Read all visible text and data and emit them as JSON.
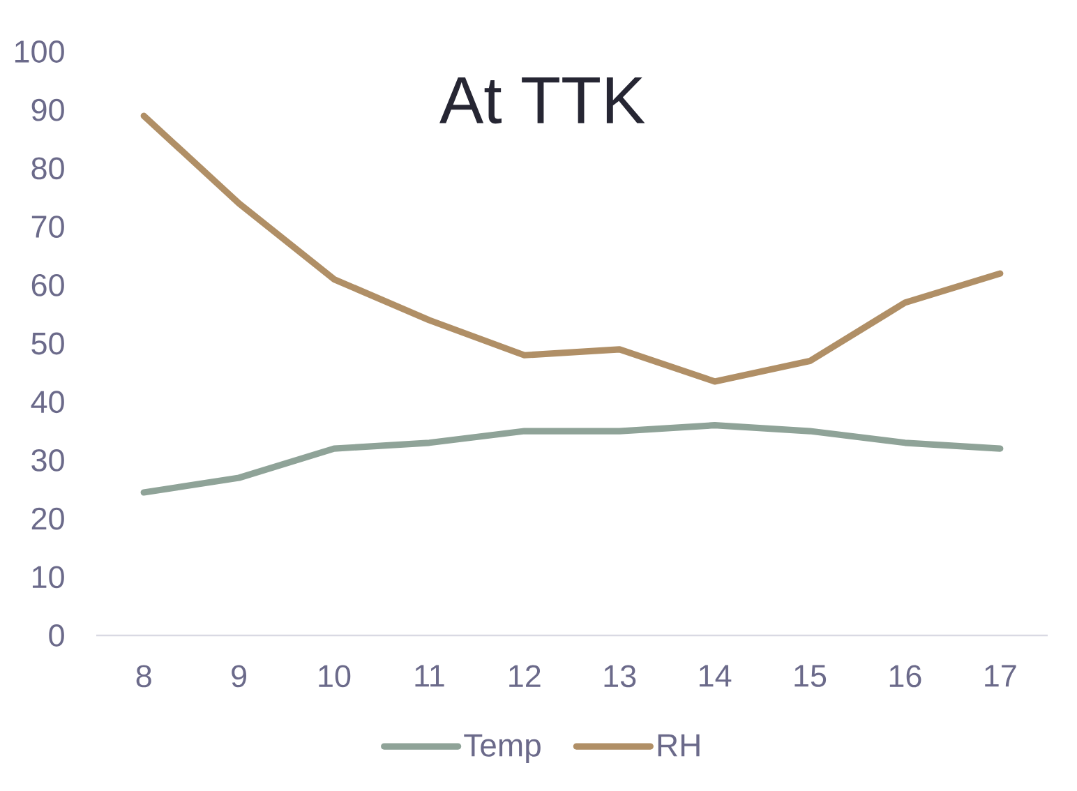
{
  "chart_data": {
    "type": "line",
    "title": "At TTK",
    "categories": [
      "8",
      "9",
      "10",
      "11",
      "12",
      "13",
      "14",
      "15",
      "16",
      "17"
    ],
    "series": [
      {
        "name": "Temp",
        "color": "#8fa398",
        "values": [
          24.5,
          27,
          32,
          33,
          35,
          35,
          36,
          35,
          33,
          32
        ]
      },
      {
        "name": "RH",
        "color": "#b08f66",
        "values": [
          89,
          74,
          61,
          54,
          48,
          49,
          43.5,
          47,
          57,
          62
        ]
      }
    ],
    "ylim": [
      0,
      100
    ],
    "yticks": [
      0,
      10,
      20,
      30,
      40,
      50,
      60,
      70,
      80,
      90,
      100
    ],
    "legend": "bottom",
    "marker": "none",
    "line_style": "solid"
  }
}
